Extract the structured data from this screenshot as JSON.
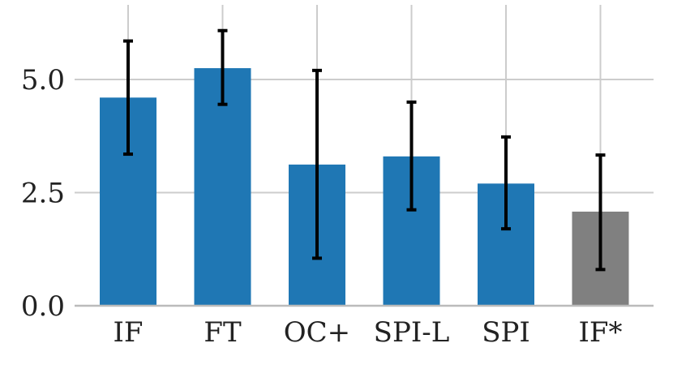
{
  "chart_data": {
    "type": "bar",
    "categories": [
      "IF",
      "FT",
      "OC+",
      "SPI-L",
      "SPI",
      "IF*"
    ],
    "values": [
      4.6,
      5.25,
      3.12,
      3.3,
      2.7,
      2.08
    ],
    "error_low": [
      3.35,
      4.45,
      1.05,
      2.12,
      1.7,
      0.8
    ],
    "error_high": [
      5.85,
      6.08,
      5.2,
      4.5,
      3.73,
      3.33
    ],
    "bar_colors": [
      "#1f77b4",
      "#1f77b4",
      "#1f77b4",
      "#1f77b4",
      "#1f77b4",
      "#808080"
    ],
    "error_color": "#000000",
    "y_ticks": [
      0.0,
      2.5,
      5.0
    ],
    "y_tick_labels": [
      "0.0",
      "2.5",
      "5.0"
    ],
    "ylim": [
      0,
      6.5
    ],
    "grid": true,
    "grid_color": "#cccccc",
    "title": "",
    "xlabel": "",
    "ylabel": ""
  }
}
